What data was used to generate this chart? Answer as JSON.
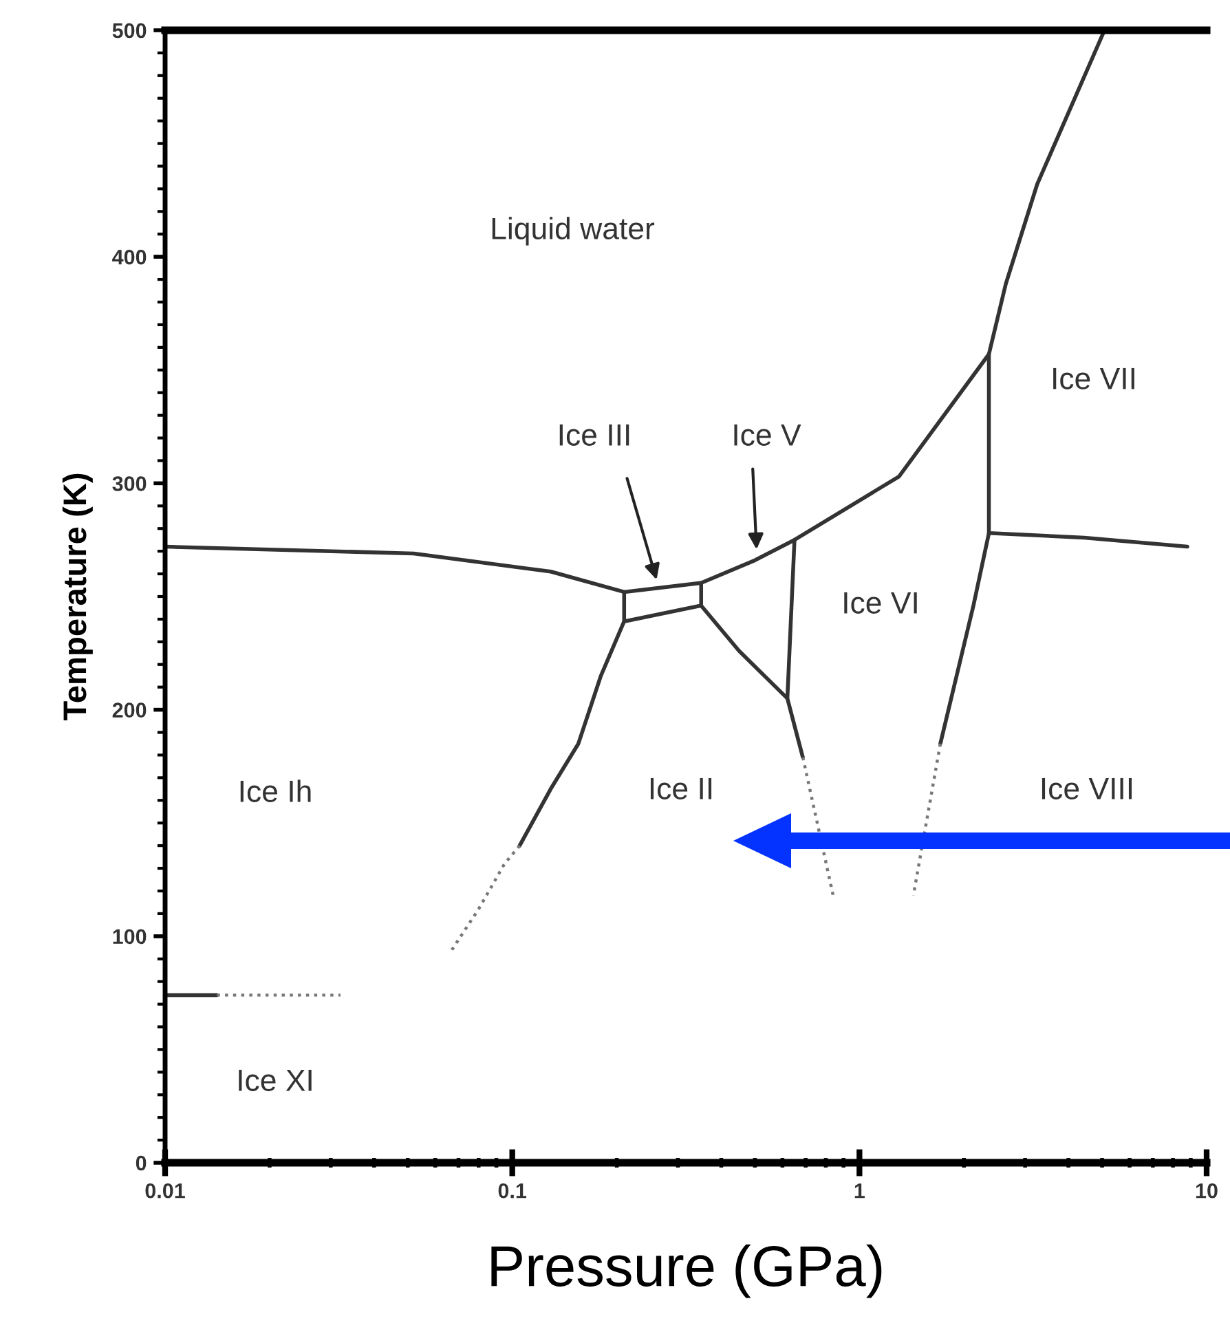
{
  "chart_data": {
    "type": "line",
    "xlabel": "Pressure (GPa)",
    "ylabel": "Temperature (K)",
    "log": "x",
    "xlim": [
      0.01,
      10
    ],
    "xticks": [
      0.01,
      0.1,
      1,
      10
    ],
    "ylim": [
      0,
      500
    ],
    "yticks": [
      0,
      100,
      200,
      300,
      400,
      500
    ],
    "grid": false,
    "legend": false,
    "marker": "none",
    "series": [
      {
        "color": "#333333",
        "line_style": "solid",
        "x": [
          0.01,
          0.052,
          0.129,
          0.21,
          0.35,
          0.5,
          0.65,
          1.3,
          2.36,
          2.64,
          3.25,
          5.08
        ],
        "values": [
          272,
          269,
          261,
          252,
          256,
          266,
          275,
          303,
          357,
          388,
          432,
          500
        ]
      },
      {
        "color": "#333333",
        "line_style": "solid",
        "x": [
          0.21,
          0.35,
          0.45,
          0.62,
          0.687
        ],
        "values": [
          239,
          246,
          226,
          205,
          179
        ]
      },
      {
        "color": "#777777",
        "line_style": "dotted",
        "x": [
          0.687,
          0.84
        ],
        "values": [
          179,
          118
        ]
      },
      {
        "color": "#333333",
        "line_style": "solid",
        "x": [
          0.35,
          0.35
        ],
        "values": [
          256,
          246
        ]
      },
      {
        "color": "#333333",
        "line_style": "solid",
        "x": [
          0.65,
          0.62
        ],
        "values": [
          275,
          205
        ]
      },
      {
        "color": "#333333",
        "line_style": "solid",
        "x": [
          0.21,
          0.21,
          0.18,
          0.155,
          0.129,
          0.105
        ],
        "values": [
          252,
          239,
          215,
          185,
          165,
          140
        ]
      },
      {
        "color": "#777777",
        "line_style": "dotted",
        "x": [
          0.105,
          0.095,
          0.08,
          0.067
        ],
        "values": [
          140,
          132,
          112,
          94
        ]
      },
      {
        "color": "#333333",
        "line_style": "solid",
        "x": [
          0.01,
          0.0141
        ],
        "values": [
          74,
          74
        ]
      },
      {
        "color": "#777777",
        "line_style": "dotted",
        "x": [
          0.0141,
          0.032
        ],
        "values": [
          74,
          74
        ]
      },
      {
        "color": "#333333",
        "line_style": "solid",
        "x": [
          2.36,
          2.36,
          4.44,
          8.8
        ],
        "values": [
          357,
          278,
          276,
          272
        ]
      },
      {
        "color": "#333333",
        "line_style": "solid",
        "x": [
          2.36,
          2.13,
          1.71
        ],
        "values": [
          278,
          246,
          185
        ]
      },
      {
        "color": "#777777",
        "line_style": "dotted",
        "x": [
          1.71,
          1.43
        ],
        "values": [
          185,
          118
        ]
      }
    ],
    "annotations": [
      "Liquid water",
      "Ice III",
      "Ice V",
      "Ice VII",
      "Ice VI",
      "Ice Ih",
      "Ice II",
      "Ice VIII",
      "Ice XI"
    ]
  }
}
